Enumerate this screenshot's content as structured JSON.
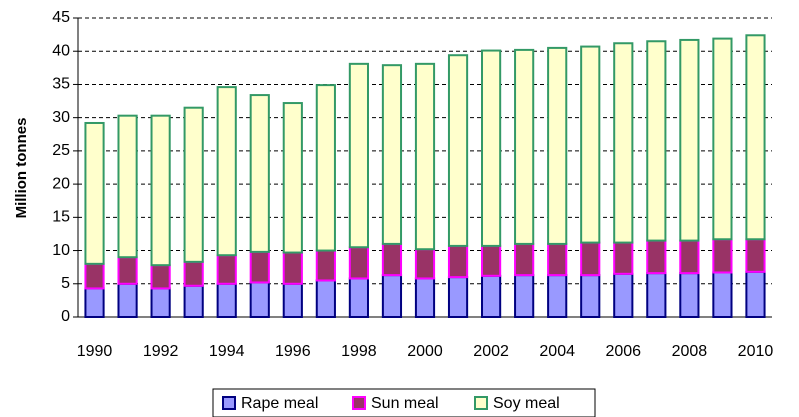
{
  "chart_data": {
    "type": "stacked_bar",
    "y_label": "Million tonnes",
    "categories": [
      "1990",
      null,
      "1992",
      null,
      "1994",
      null,
      "1996",
      null,
      "1998",
      null,
      "2000",
      null,
      "2002",
      null,
      "2004",
      null,
      "2006",
      null,
      "2008",
      null,
      "2010"
    ],
    "series": [
      {
        "name": "Rape meal",
        "color": "#9999ff",
        "stroke": "#000080",
        "values": [
          4.3,
          5,
          4.3,
          4.7,
          5,
          5.2,
          5,
          5.5,
          5.8,
          6.3,
          5.8,
          6,
          6.2,
          6.3,
          6.3,
          6.3,
          6.5,
          6.6,
          6.6,
          6.7,
          6.8
        ]
      },
      {
        "name": "Sun meal",
        "color": "#993366",
        "stroke": "#ff00ff",
        "values": [
          3.7,
          4,
          3.5,
          3.6,
          4.3,
          4.6,
          4.7,
          4.5,
          4.7,
          4.7,
          4.4,
          4.7,
          4.5,
          4.7,
          4.7,
          4.9,
          4.7,
          4.9,
          4.9,
          5,
          4.9
        ]
      },
      {
        "name": "Soy meal",
        "color": "#ffffcc",
        "stroke": "#339966",
        "values": [
          21.2,
          21.3,
          22.5,
          23.2,
          25.3,
          23.6,
          22.5,
          24.9,
          27.6,
          26.9,
          27.9,
          28.7,
          29.4,
          29.2,
          29.5,
          29.5,
          30,
          30,
          30.2,
          30.2,
          30.7
        ]
      }
    ],
    "ylim": [
      0,
      45
    ],
    "yticks": [
      0,
      5,
      10,
      15,
      20,
      25,
      30,
      35,
      40,
      45
    ],
    "grid": true,
    "legend": "bottom"
  }
}
